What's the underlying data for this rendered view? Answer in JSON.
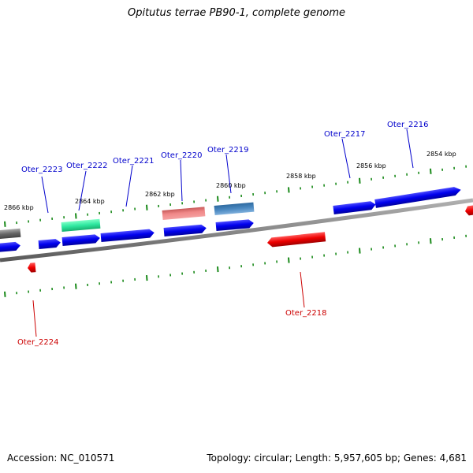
{
  "title": "Opitutus terrae PB90-1, complete genome",
  "footer": {
    "accession": "Accession: NC_010571",
    "summary": "Topology: circular; Length: 5,957,605 bp; Genes: 4,681"
  },
  "colors": {
    "forward": "#0000ee",
    "reverse": "#ee0000",
    "tick": "#1a8a1a",
    "backbone": "#888888",
    "label_forward": "#0000cc",
    "label_reverse": "#cc0000"
  },
  "scale_labels": [
    "2866 kbp",
    "2864 kbp",
    "2862 kbp",
    "2860 kbp",
    "2858 kbp",
    "2856 kbp",
    "2854 kbp"
  ],
  "gene_labels": [
    {
      "name": "Oter_2223",
      "strand": "forward"
    },
    {
      "name": "Oter_2222",
      "strand": "forward"
    },
    {
      "name": "Oter_2221",
      "strand": "forward"
    },
    {
      "name": "Oter_2220",
      "strand": "forward"
    },
    {
      "name": "Oter_2219",
      "strand": "forward"
    },
    {
      "name": "Oter_2217",
      "strand": "forward"
    },
    {
      "name": "Oter_2216",
      "strand": "forward"
    },
    {
      "name": "Oter_2218",
      "strand": "reverse"
    },
    {
      "name": "Oter_2224",
      "strand": "reverse"
    }
  ]
}
